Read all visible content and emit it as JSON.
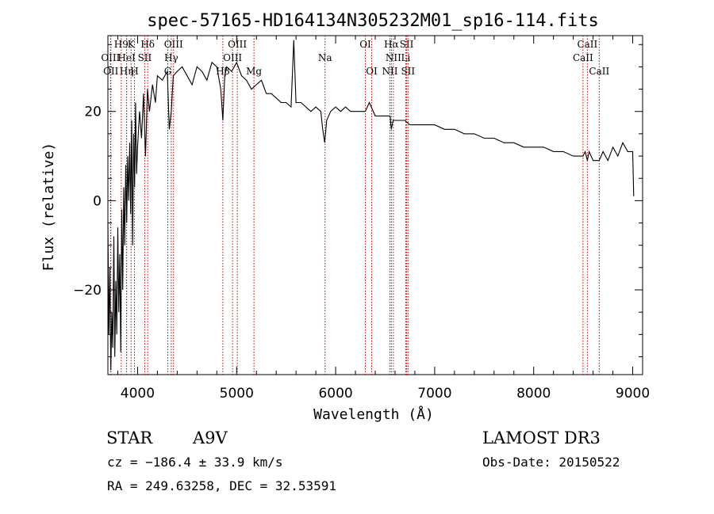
{
  "chart_data": {
    "type": "line",
    "title": "spec-57165-HD164134N305232M01_sp16-114.fits",
    "xlabel": "Wavelength (Å)",
    "ylabel": "Flux (relative)",
    "xlim": [
      3700,
      9100
    ],
    "ylim": [
      -39,
      37
    ],
    "x_ticks": [
      4000,
      5000,
      6000,
      7000,
      8000,
      9000
    ],
    "x_tick_labels": [
      "4000",
      "5000",
      "6000",
      "7000",
      "8000",
      "9000"
    ],
    "y_ticks": [
      -20,
      0,
      20
    ],
    "y_tick_labels": [
      "−20",
      "0",
      "20"
    ],
    "series": [
      {
        "name": "spectrum",
        "x": [
          3700,
          3710,
          3720,
          3730,
          3740,
          3750,
          3760,
          3770,
          3780,
          3790,
          3800,
          3810,
          3820,
          3830,
          3840,
          3850,
          3860,
          3870,
          3880,
          3890,
          3900,
          3910,
          3920,
          3930,
          3940,
          3950,
          3960,
          3970,
          3980,
          3990,
          4000,
          4020,
          4040,
          4060,
          4080,
          4100,
          4120,
          4150,
          4180,
          4200,
          4250,
          4300,
          4320,
          4340,
          4360,
          4400,
          4450,
          4500,
          4550,
          4600,
          4650,
          4700,
          4750,
          4800,
          4840,
          4861,
          4880,
          4900,
          4950,
          5000,
          5050,
          5100,
          5150,
          5200,
          5250,
          5300,
          5350,
          5400,
          5450,
          5500,
          5550,
          5577,
          5600,
          5650,
          5700,
          5750,
          5800,
          5850,
          5870,
          5890,
          5910,
          5950,
          6000,
          6050,
          6100,
          6150,
          6200,
          6250,
          6300,
          6340,
          6400,
          6450,
          6500,
          6550,
          6563,
          6580,
          6620,
          6650,
          6700,
          6750,
          6800,
          6900,
          7000,
          7100,
          7200,
          7300,
          7400,
          7500,
          7600,
          7700,
          7800,
          7900,
          8000,
          8100,
          8200,
          8300,
          8400,
          8450,
          8498,
          8520,
          8542,
          8560,
          8600,
          8662,
          8700,
          8750,
          8800,
          8850,
          8900,
          8950,
          9000,
          9010
        ],
        "y": [
          -5,
          -30,
          -15,
          -38,
          -25,
          -33,
          -8,
          -35,
          -18,
          -30,
          -6,
          -25,
          -12,
          -34,
          -2,
          -20,
          3,
          -10,
          8,
          -5,
          10,
          0,
          13,
          -3,
          18,
          -10,
          15,
          3,
          22,
          6,
          12,
          20,
          14,
          24,
          10,
          25,
          20,
          26,
          22,
          28,
          27,
          29,
          16,
          20,
          28,
          29,
          30,
          28,
          26,
          30,
          29,
          27,
          31,
          30,
          25,
          18,
          28,
          30,
          29,
          31,
          28,
          27,
          25,
          26,
          27,
          24,
          24,
          23,
          22,
          22,
          21,
          36,
          22,
          22,
          21,
          20,
          21,
          20,
          16,
          13,
          18,
          20,
          21,
          20,
          21,
          20,
          20,
          20,
          20,
          22,
          19,
          19,
          19,
          19,
          16,
          18,
          18,
          18,
          18,
          17,
          17,
          17,
          17,
          16,
          16,
          15,
          15,
          14,
          14,
          13,
          13,
          12,
          12,
          12,
          11,
          11,
          10,
          10,
          10,
          11,
          9,
          11,
          9,
          9,
          11,
          9,
          12,
          10,
          13,
          11,
          11,
          1
        ]
      }
    ],
    "lines": [
      {
        "name": "OIII",
        "wavelength": 3727,
        "row": 1
      },
      {
        "name": "OII",
        "wavelength": 3730,
        "row": 2
      },
      {
        "name": "H9",
        "wavelength": 3835,
        "row": 0
      },
      {
        "name": "HeI",
        "wavelength": 3889,
        "row": 1
      },
      {
        "name": "Hη",
        "wavelength": 3889,
        "row": 2
      },
      {
        "name": "K",
        "wavelength": 3934,
        "row": 0
      },
      {
        "name": "H",
        "wavelength": 3968,
        "row": 2
      },
      {
        "name": "SII",
        "wavelength": 4072,
        "row": 1
      },
      {
        "name": "Hδ",
        "wavelength": 4102,
        "row": 0
      },
      {
        "name": "OIII",
        "wavelength": 4363,
        "row": 0
      },
      {
        "name": "Hγ",
        "wavelength": 4340,
        "row": 1
      },
      {
        "name": "G",
        "wavelength": 4305,
        "row": 2
      },
      {
        "name": "Hβ",
        "wavelength": 4861,
        "row": 2
      },
      {
        "name": "OIII",
        "wavelength": 5007,
        "row": 0
      },
      {
        "name": "OIII",
        "wavelength": 4959,
        "row": 1
      },
      {
        "name": "Mg",
        "wavelength": 5175,
        "row": 2
      },
      {
        "name": "Na",
        "wavelength": 5893,
        "row": 1
      },
      {
        "name": "OI",
        "wavelength": 6300,
        "row": 0
      },
      {
        "name": "OI",
        "wavelength": 6364,
        "row": 2
      },
      {
        "name": "Hα",
        "wavelength": 6563,
        "row": 0
      },
      {
        "name": "NII",
        "wavelength": 6583,
        "row": 1
      },
      {
        "name": "NII",
        "wavelength": 6548,
        "row": 2
      },
      {
        "name": "SII",
        "wavelength": 6717,
        "row": 0
      },
      {
        "name": "Li",
        "wavelength": 6708,
        "row": 1
      },
      {
        "name": "SII",
        "wavelength": 6731,
        "row": 2
      },
      {
        "name": "CaII",
        "wavelength": 8542,
        "row": 0
      },
      {
        "name": "CaII",
        "wavelength": 8498,
        "row": 1
      },
      {
        "name": "CaII",
        "wavelength": 8662,
        "row": 2
      }
    ]
  },
  "info": {
    "object_type": "STAR",
    "subclass": "A9V",
    "survey": "LAMOST DR3",
    "cz": "cz = −186.4 ± 33.9 km/s",
    "obs_date": "Obs-Date: 20150522",
    "coords": "RA = 249.63258, DEC =  32.53591"
  },
  "colors": {
    "spectrum": "#000000",
    "lines": "#c00000",
    "axes": "#000000"
  }
}
